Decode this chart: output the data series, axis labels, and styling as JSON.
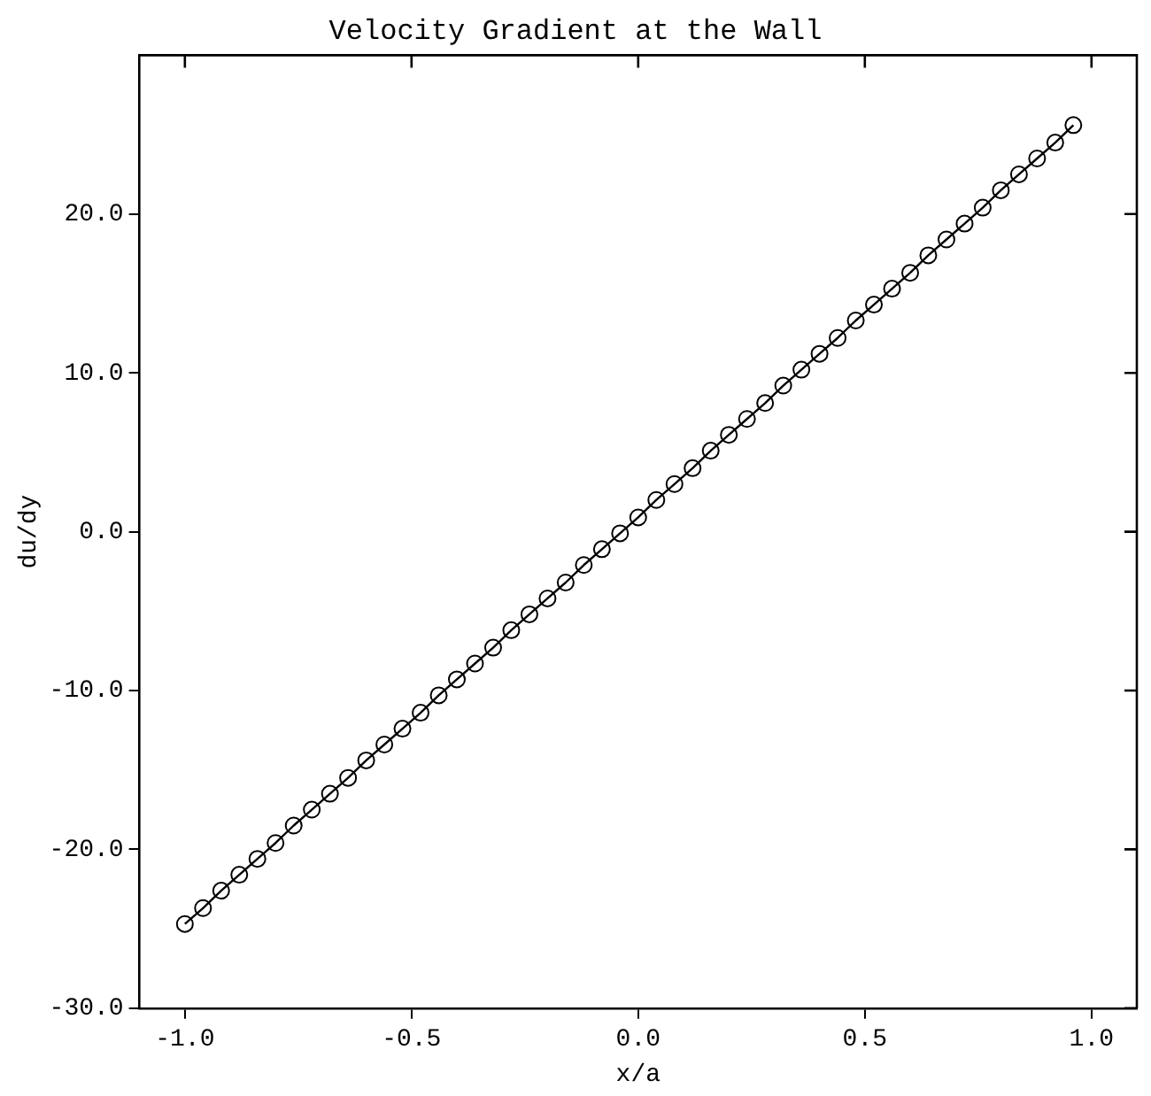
{
  "chart_data": {
    "type": "line",
    "title": "Velocity Gradient at the Wall",
    "xlabel": "x/a",
    "ylabel": "du/dy",
    "x": [
      -1.0,
      -0.96,
      -0.92,
      -0.88,
      -0.84,
      -0.8,
      -0.76,
      -0.72,
      -0.68,
      -0.64,
      -0.6,
      -0.56,
      -0.52,
      -0.48,
      -0.44,
      -0.4,
      -0.36,
      -0.32,
      -0.28,
      -0.24,
      -0.2,
      -0.16,
      -0.12,
      -0.08,
      -0.04,
      0.0,
      0.04,
      0.08,
      0.12,
      0.16,
      0.2,
      0.24,
      0.28,
      0.32,
      0.36,
      0.4,
      0.44,
      0.48,
      0.52,
      0.56,
      0.6,
      0.64,
      0.68,
      0.72,
      0.76,
      0.8,
      0.84,
      0.88,
      0.92,
      0.96
    ],
    "series": [
      {
        "color": "#000000",
        "values": [
          -24.7,
          -23.7,
          -22.6,
          -21.6,
          -20.6,
          -19.6,
          -18.5,
          -17.5,
          -16.5,
          -15.5,
          -14.4,
          -13.4,
          -12.4,
          -11.4,
          -10.3,
          -9.3,
          -8.3,
          -7.3,
          -6.2,
          -5.2,
          -4.2,
          -3.2,
          -2.1,
          -1.1,
          -0.1,
          0.9,
          2.0,
          3.0,
          4.0,
          5.1,
          6.1,
          7.1,
          8.1,
          9.2,
          10.2,
          11.2,
          12.2,
          13.3,
          14.3,
          15.3,
          16.3,
          17.4,
          18.4,
          19.4,
          20.4,
          21.5,
          22.5,
          23.5,
          24.5,
          25.6
        ]
      }
    ],
    "xlim": [
      -1.1,
      1.1
    ],
    "xticks": [
      {
        "value": -1,
        "label": "-1.0"
      },
      {
        "value": -0.5,
        "label": "-0.5"
      },
      {
        "value": 0,
        "label": "0.0"
      },
      {
        "value": 0.5,
        "label": "0.5"
      },
      {
        "value": 1,
        "label": "1.0"
      }
    ],
    "ylim": [
      -30,
      30
    ],
    "yticks": [
      {
        "value": -30,
        "label": "-30.0"
      },
      {
        "value": -20,
        "label": "-20.0"
      },
      {
        "value": -10,
        "label": "-10.0"
      },
      {
        "value": 0,
        "label": "0.0"
      },
      {
        "value": 10,
        "label": "10.0"
      },
      {
        "value": 20,
        "label": "20.0"
      }
    ],
    "grid": false,
    "legend": false,
    "marker": "circle",
    "line_style": "solid"
  }
}
